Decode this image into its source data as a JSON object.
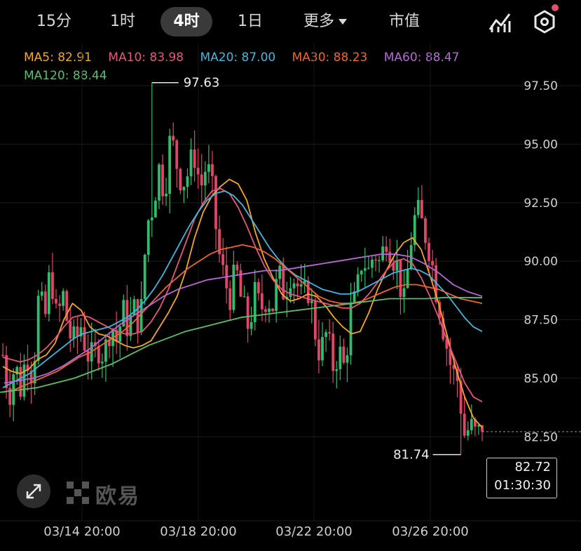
{
  "tabs": [
    {
      "label": "15分",
      "active": false
    },
    {
      "label": "1时",
      "active": false
    },
    {
      "label": "4时",
      "active": true
    },
    {
      "label": "1日",
      "active": false
    },
    {
      "label": "更多",
      "active": false
    },
    {
      "label": "市值",
      "active": false
    }
  ],
  "icons": {
    "indicator": "chart-indicator-icon",
    "settings": "hexagon-settings-icon",
    "expand": "expand-arrows-icon"
  },
  "ma_legend": [
    {
      "label": "MA5: 82.91",
      "color": "#f5a623"
    },
    {
      "label": "MA10: 83.98",
      "color": "#e8557a"
    },
    {
      "label": "MA20: 87.00",
      "color": "#3fb7e0"
    },
    {
      "label": "MA30: 88.23",
      "color": "#f0642f"
    },
    {
      "label": "MA60: 88.47",
      "color": "#b768d6"
    },
    {
      "label": "MA120: 88.44",
      "color": "#5bbf6a"
    }
  ],
  "logo_text": "欧易",
  "price_box": {
    "price": "82.72",
    "countdown": "01:30:30"
  },
  "chart_data": {
    "type": "candlestick",
    "title": "",
    "y_ticks": [
      "97.50",
      "95.00",
      "92.50",
      "90.00",
      "87.50",
      "85.00",
      "82.50"
    ],
    "y_tick_values": [
      97.5,
      95.0,
      92.5,
      90.0,
      87.5,
      85.0,
      82.5
    ],
    "ylim": [
      80.8,
      99.3
    ],
    "x_ticks": [
      "03/14 20:00",
      "03/18 20:00",
      "03/22 20:00",
      "03/26 20:00"
    ],
    "high_mark": {
      "label": "97.63",
      "value": 97.63
    },
    "low_mark": {
      "label": "81.74",
      "value": 81.74
    },
    "last_price": 82.72,
    "up_color": "#2ebd6b",
    "down_color": "#e0466a",
    "close_path": [
      86.0,
      84.3,
      85.6,
      84.6,
      86.2,
      85.1,
      88.5,
      87.4,
      89.8,
      87.3,
      88.6,
      87.0,
      86.4,
      87.3,
      86.2,
      85.7,
      86.4,
      86.0,
      87.5,
      86.6,
      87.8,
      87.2,
      87.9,
      87.4,
      91.5,
      92.4,
      94.0,
      93.1,
      95.3,
      94.2,
      93.4,
      93.8,
      94.6,
      93.1,
      94.2,
      92.8,
      90.4,
      89.1,
      88.6,
      89.5,
      88.0,
      87.2,
      88.5,
      87.9,
      88.6,
      88.1,
      89.3,
      88.7,
      89.6,
      89.1,
      88.2,
      88.9,
      87.2,
      86.0,
      86.9,
      85.5,
      86.2,
      85.4,
      87.8,
      88.3,
      90.3,
      89.5,
      90.5,
      89.8,
      91.2,
      90.4,
      89.6,
      88.0,
      90.8,
      92.1,
      91.5,
      90.9,
      89.3,
      88.0,
      86.5,
      85.2,
      84.9,
      82.6,
      82.9,
      82.5,
      82.72
    ],
    "ma_series": [
      {
        "label": "MA5",
        "values": [
          85.5,
          85.3,
          85.2,
          85.4,
          85.8,
          86.0,
          86.5,
          87.5,
          88.2,
          87.9,
          87.2,
          86.9,
          86.8,
          86.6,
          86.4,
          86.3,
          86.4,
          86.6,
          87.2,
          87.8,
          88.5,
          89.6,
          91.0,
          92.1,
          92.8,
          93.2,
          93.5,
          93.3,
          92.6,
          91.2,
          90.1,
          89.3,
          88.6,
          88.3,
          88.4,
          88.6,
          88.5,
          88.1,
          87.6,
          87.2,
          86.9,
          87.0,
          87.8,
          88.8,
          89.6,
          90.3,
          90.8,
          91.0,
          90.5,
          89.4,
          88.2,
          86.8,
          85.4,
          84.2,
          83.3,
          82.9
        ]
      },
      {
        "label": "MA10",
        "values": [
          85.9,
          85.8,
          85.7,
          85.8,
          86.0,
          86.3,
          86.7,
          87.2,
          87.6,
          87.7,
          87.6,
          87.4,
          87.2,
          87.0,
          86.9,
          86.9,
          87.0,
          87.4,
          88.0,
          88.8,
          89.8,
          90.8,
          91.8,
          92.5,
          93.0,
          93.1,
          92.9,
          92.3,
          91.5,
          90.6,
          89.8,
          89.2,
          88.8,
          88.6,
          88.5,
          88.4,
          88.3,
          88.2,
          88.1,
          88.0,
          88.0,
          88.2,
          88.6,
          89.1,
          89.6,
          90.0,
          90.1,
          89.9,
          89.3,
          88.5,
          87.6,
          86.6,
          85.7,
          84.8,
          84.2,
          84.0
        ]
      },
      {
        "label": "MA20",
        "values": [
          84.6,
          84.8,
          85.0,
          85.2,
          85.5,
          85.8,
          86.1,
          86.4,
          86.7,
          86.9,
          87.0,
          87.1,
          87.2,
          87.4,
          87.6,
          87.9,
          88.3,
          88.8,
          89.4,
          90.1,
          90.8,
          91.5,
          92.1,
          92.6,
          92.9,
          93.0,
          92.8,
          92.4,
          91.8,
          91.2,
          90.6,
          90.1,
          89.7,
          89.4,
          89.2,
          89.0,
          88.8,
          88.7,
          88.6,
          88.6,
          88.7,
          88.9,
          89.1,
          89.3,
          89.5,
          89.6,
          89.7,
          89.6,
          89.4,
          89.0,
          88.6,
          88.1,
          87.6,
          87.2,
          87.0
        ]
      },
      {
        "label": "MA30",
        "values": [
          84.4,
          84.5,
          84.7,
          84.9,
          85.1,
          85.3,
          85.6,
          85.9,
          86.1,
          86.4,
          86.7,
          87.0,
          87.4,
          87.9,
          88.4,
          88.9,
          89.3,
          89.7,
          90.0,
          90.3,
          90.5,
          90.6,
          90.7,
          90.6,
          90.4,
          90.1,
          89.7,
          89.3,
          88.9,
          88.5,
          88.3,
          88.2,
          88.2,
          88.3,
          88.5,
          88.7,
          88.9,
          89.0,
          89.0,
          88.9,
          88.8,
          88.6,
          88.4,
          88.3,
          88.2
        ]
      },
      {
        "label": "MA60",
        "values": [
          84.8,
          84.9,
          85.0,
          85.2,
          85.5,
          85.9,
          86.3,
          86.8,
          87.3,
          87.7,
          88.1,
          88.5,
          88.8,
          89.0,
          89.2,
          89.3,
          89.4,
          89.5,
          89.6,
          89.6,
          89.7,
          89.8,
          89.9,
          90.0,
          90.1,
          90.2,
          90.3,
          90.3,
          90.2,
          89.9,
          89.5,
          89.0,
          88.7,
          88.5
        ]
      },
      {
        "label": "MA120",
        "values": [
          84.4,
          84.5,
          84.6,
          84.8,
          85.0,
          85.3,
          85.6,
          86.0,
          86.4,
          86.7,
          87.0,
          87.2,
          87.4,
          87.6,
          87.7,
          87.8,
          87.9,
          88.0,
          88.1,
          88.2,
          88.3,
          88.4,
          88.4,
          88.4,
          88.45,
          88.45,
          88.44
        ]
      }
    ]
  }
}
